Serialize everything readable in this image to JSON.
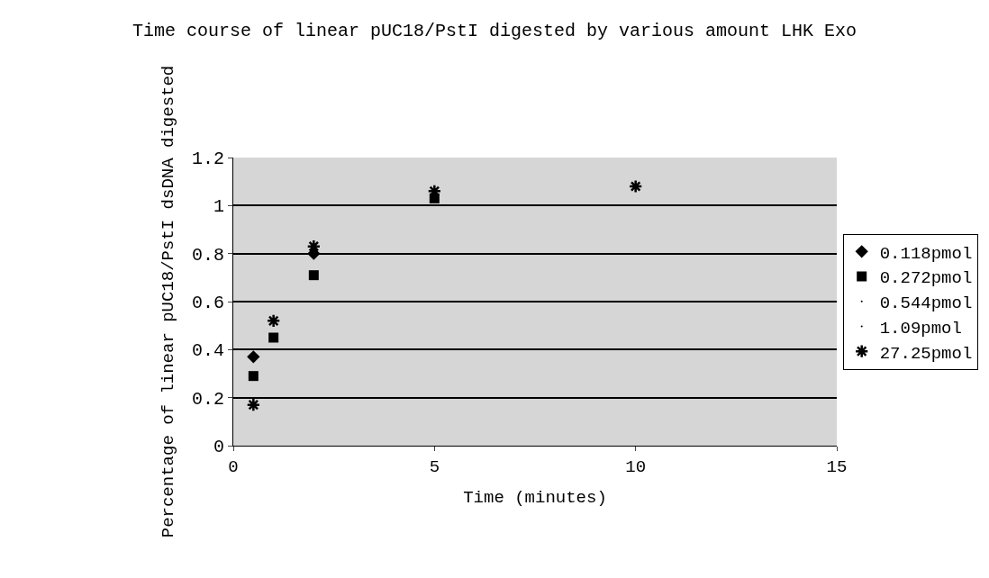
{
  "chart_data": {
    "type": "scatter",
    "title": "Time course of linear pUC18/PstI digested by various amount LHK Exo",
    "xlabel": "Time (minutes)",
    "ylabel": "Percentage of linear pUC18/PstI dsDNA digested",
    "x": [
      0.5,
      1,
      2,
      5,
      10
    ],
    "series": [
      {
        "name": "0.118pmol",
        "color": "#000000",
        "marker": "diamond",
        "values": [
          0.37,
          null,
          0.8,
          null,
          null
        ]
      },
      {
        "name": "0.272pmol",
        "color": "#000000",
        "marker": "square",
        "values": [
          0.29,
          0.45,
          0.71,
          1.03,
          null
        ]
      },
      {
        "name": "0.544pmol",
        "color": "#000000",
        "marker": "none",
        "values": [
          null,
          null,
          null,
          null,
          null
        ]
      },
      {
        "name": "1.09pmol",
        "color": "#000000",
        "marker": "none",
        "values": [
          null,
          null,
          null,
          null,
          null
        ]
      },
      {
        "name": "27.25pmol",
        "color": "#000000",
        "marker": "cross",
        "values": [
          0.17,
          0.52,
          0.83,
          1.06,
          1.08
        ]
      }
    ],
    "xlim": [
      0,
      15
    ],
    "xticks": [
      0,
      5,
      10,
      15
    ],
    "ylim": [
      0,
      1.2
    ],
    "yticks": [
      0,
      0.2,
      0.4,
      0.6,
      0.8,
      1,
      1.2
    ],
    "grid": "y",
    "legend": "right"
  }
}
